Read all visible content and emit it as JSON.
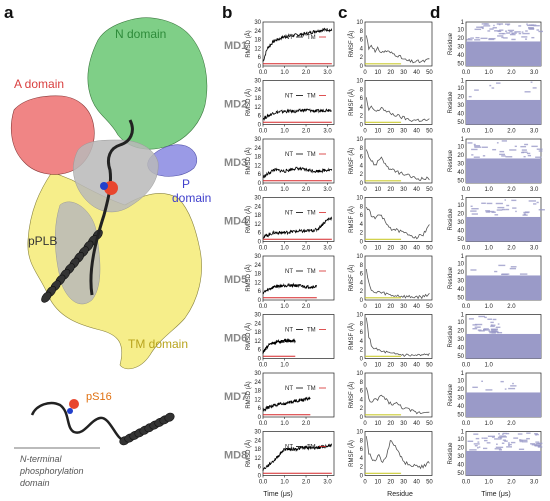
{
  "panels": {
    "a": "a",
    "b": "b",
    "c": "c",
    "d": "d"
  },
  "structure": {
    "n_domain": "N domain",
    "a_domain": "A domain",
    "p_domain_line1": "P",
    "p_domain_line2": "domain",
    "pplb": "pPLB",
    "tm_domain": "TM domain",
    "ps16": "pS16",
    "nterm_line1": "N-terminal",
    "nterm_line2": "phosphorylation",
    "nterm_line3": "domain",
    "colors": {
      "n_domain": "#7fcf87",
      "a_domain": "#f08585",
      "p_domain": "#9a9ae6",
      "tm_domain": "#f6ee8a",
      "pplb": "#222222",
      "ps16": "#e8462e",
      "n_label": "#2e8b3a",
      "a_label": "#d94040",
      "p_label": "#4040cc",
      "tm_label": "#b8a41e",
      "ps16_label": "#e07010"
    }
  },
  "md_labels": [
    "MD1",
    "MD2",
    "MD3",
    "MD4",
    "MD5",
    "MD6",
    "MD7",
    "MD8"
  ],
  "rmsd": {
    "ylabel": "RMSD (Å)",
    "xlabel": "Time (μs)",
    "legend_nt": "NT",
    "legend_tm": "TM",
    "nt_color": "#000000",
    "tm_color": "#d62728",
    "yticks": [
      "0",
      "6",
      "12",
      "18",
      "24",
      "30"
    ],
    "plots": [
      {
        "xticks": [
          "0.0",
          "1.0",
          "2.0",
          "3.0"
        ],
        "xmax": 3.2
      },
      {
        "xticks": [
          "0.0",
          "1.0",
          "2.0",
          "3.0"
        ],
        "xmax": 3.2
      },
      {
        "xticks": [
          "0.0",
          "1.0",
          "2.0",
          "3.0"
        ],
        "xmax": 3.2
      },
      {
        "xticks": [
          "0.0",
          "1.0",
          "2.0",
          "3.0"
        ],
        "xmax": 3.2
      },
      {
        "xticks": [
          "0.0",
          "1.0",
          "2.0"
        ],
        "xmax": 2.5
      },
      {
        "xticks": [
          "0.0",
          "1.0"
        ],
        "xmax": 1.5
      },
      {
        "xticks": [
          "0.0",
          "1.0",
          "2.0"
        ],
        "xmax": 2.2
      },
      {
        "xticks": [
          "0.0",
          "1.0",
          "2.0",
          "3.0"
        ],
        "xmax": 3.2
      }
    ]
  },
  "rmsf": {
    "ylabel": "RMSF (Å)",
    "xlabel": "Residue",
    "yticks": [
      "0",
      "2",
      "4",
      "6",
      "8",
      "10"
    ],
    "xticks": [
      "0",
      "10",
      "20",
      "30",
      "40",
      "50"
    ],
    "line_color": "#555555",
    "tm_color": "#cccc33"
  },
  "ss": {
    "ylabel": "Residue",
    "xlabel": "Time (μs)",
    "yticks": [
      "1",
      "10",
      "20",
      "30",
      "40",
      "50"
    ],
    "band_color": "#9a9ac8"
  },
  "chart_data": [
    {
      "type": "line",
      "panel": "b",
      "ylabel": "RMSD (Å)",
      "xlabel": "Time (μs)",
      "ylim": [
        0,
        30
      ],
      "series": [
        {
          "name": "NT",
          "runs": [
            {
              "md": "MD1",
              "x": [
                0,
                0.2,
                0.5,
                1.0,
                1.5,
                2.0,
                2.5,
                3.0,
                3.2
              ],
              "y": [
                3,
                12,
                17,
                20,
                21,
                22,
                24,
                25,
                24
              ]
            },
            {
              "md": "MD2",
              "x": [
                0,
                0.5,
                1.0,
                1.5,
                2.0,
                2.5,
                3.0,
                3.2
              ],
              "y": [
                4,
                8,
                9,
                9,
                10,
                9,
                10,
                10
              ]
            },
            {
              "md": "MD3",
              "x": [
                0,
                0.5,
                1.0,
                1.5,
                2.0,
                2.5,
                3.0,
                3.2
              ],
              "y": [
                4,
                9,
                8,
                10,
                9,
                8,
                9,
                9
              ]
            },
            {
              "md": "MD4",
              "x": [
                0,
                0.5,
                1.0,
                1.5,
                2.0,
                2.5,
                3.0,
                3.2
              ],
              "y": [
                3,
                6,
                6,
                7,
                7,
                8,
                15,
                16
              ]
            },
            {
              "md": "MD5",
              "x": [
                0,
                0.5,
                1.0,
                1.5,
                2.0,
                2.5
              ],
              "y": [
                5,
                9,
                10,
                10,
                9,
                9
              ]
            },
            {
              "md": "MD6",
              "x": [
                0,
                0.3,
                0.6,
                1.0,
                1.5
              ],
              "y": [
                4,
                10,
                11,
                12,
                12
              ]
            },
            {
              "md": "MD7",
              "x": [
                0,
                0.5,
                1.0,
                1.5,
                2.0,
                2.2
              ],
              "y": [
                5,
                8,
                9,
                11,
                12,
                13
              ]
            },
            {
              "md": "MD8",
              "x": [
                0,
                0.5,
                1.0,
                1.5,
                2.0,
                2.5,
                3.0,
                3.2
              ],
              "y": [
                4,
                10,
                18,
                18,
                19,
                19,
                20,
                21
              ]
            }
          ]
        },
        {
          "name": "TM",
          "runs": [
            {
              "md": "all",
              "y_approx": 1.5
            }
          ]
        }
      ]
    },
    {
      "type": "line",
      "panel": "c",
      "ylabel": "RMSF (Å)",
      "xlabel": "Residue",
      "ylim": [
        0,
        10
      ],
      "xlim": [
        0,
        52
      ],
      "series": [
        {
          "name": "MD1",
          "x": [
            1,
            3,
            5,
            8,
            10,
            13,
            16,
            20,
            25,
            30,
            35,
            40,
            45,
            50
          ],
          "y": [
            7,
            4,
            5,
            3,
            4,
            3,
            3.5,
            3,
            2.5,
            1.5,
            1,
            1,
            1,
            1.5
          ]
        },
        {
          "name": "MD2",
          "x": [
            1,
            3,
            5,
            8,
            10,
            13,
            16,
            20,
            25,
            30,
            35,
            40,
            45,
            50
          ],
          "y": [
            6,
            3,
            4,
            3,
            3,
            4,
            3,
            2.5,
            2,
            1.5,
            1,
            1,
            1,
            1
          ]
        },
        {
          "name": "MD3",
          "x": [
            1,
            3,
            5,
            8,
            10,
            13,
            16,
            20,
            25,
            30,
            35,
            40,
            45,
            50
          ],
          "y": [
            8,
            6,
            5,
            4,
            5,
            6,
            4,
            3,
            2.5,
            2,
            1.5,
            1,
            1,
            1
          ]
        },
        {
          "name": "MD4",
          "x": [
            1,
            3,
            5,
            8,
            10,
            13,
            16,
            20,
            25,
            30,
            35,
            40,
            45,
            50
          ],
          "y": [
            8,
            7,
            6,
            5,
            6,
            6,
            4,
            3,
            2.5,
            2,
            1.5,
            1,
            1.5,
            4
          ]
        },
        {
          "name": "MD5",
          "x": [
            1,
            3,
            5,
            8,
            10,
            13,
            16,
            20,
            25,
            30,
            35,
            40,
            45,
            50
          ],
          "y": [
            7,
            4,
            2,
            1.5,
            2,
            1.5,
            1.5,
            1,
            1,
            0.8,
            0.7,
            0.7,
            0.7,
            1.5
          ]
        },
        {
          "name": "MD6",
          "x": [
            1,
            3,
            5,
            8,
            10,
            13,
            16,
            20,
            25,
            30,
            35,
            40,
            45,
            50
          ],
          "y": [
            9,
            5,
            3,
            2,
            2,
            1.5,
            1.5,
            1,
            1,
            0.8,
            0.7,
            0.7,
            0.7,
            1
          ]
        },
        {
          "name": "MD7",
          "x": [
            1,
            3,
            5,
            8,
            10,
            13,
            16,
            20,
            25,
            30,
            35,
            40,
            45,
            50
          ],
          "y": [
            7,
            4,
            3,
            4,
            4,
            5,
            4,
            3,
            3,
            2,
            1.5,
            1,
            1,
            1.5
          ]
        },
        {
          "name": "MD8",
          "x": [
            1,
            3,
            5,
            8,
            10,
            13,
            16,
            20,
            25,
            30,
            35,
            40,
            45,
            50
          ],
          "y": [
            9,
            5,
            4,
            3,
            5,
            3,
            4,
            8,
            6,
            3,
            2.5,
            2,
            2,
            3
          ]
        }
      ]
    },
    {
      "type": "heatmap",
      "panel": "d",
      "ylabel": "Residue",
      "xlabel": "Time (μs)",
      "ylim": [
        1,
        52
      ]
    }
  ]
}
